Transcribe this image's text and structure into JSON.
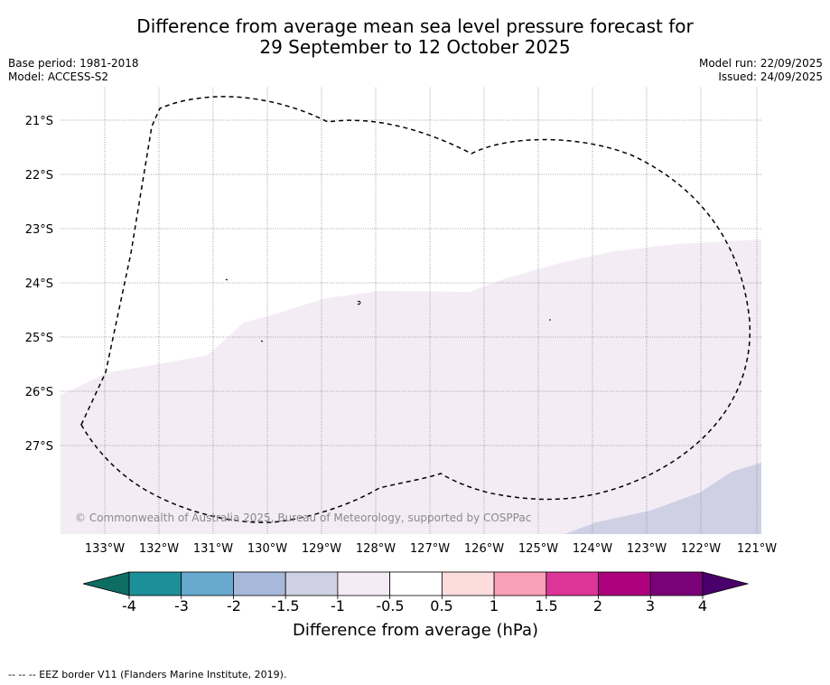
{
  "title": {
    "line1": "Difference from average mean sea level pressure forecast for",
    "line2": "29 September to 12 October 2025"
  },
  "info_left": {
    "base_period": "Base period: 1981-2018",
    "model": "Model: ACCESS-S2"
  },
  "info_right": {
    "model_run": "Model run: 22/09/2025",
    "issued": "Issued: 24/09/2025"
  },
  "map": {
    "lon_labels": [
      "133°W",
      "132°W",
      "131°W",
      "130°W",
      "129°W",
      "128°W",
      "127°W",
      "126°W",
      "125°W",
      "124°W",
      "123°W",
      "122°W",
      "121°W"
    ],
    "lat_labels": [
      "21°S",
      "22°S",
      "23°S",
      "24°S",
      "25°S",
      "26°S",
      "27°S"
    ],
    "copyright": "© Commonwealth of Australia 2025, Bureau of Meteorology, supported by COSPPac",
    "region_colors": {
      "light_negative": "#f3ecf5",
      "moderate_negative": "#cfd0e4"
    }
  },
  "colorbar": {
    "label": "Difference from average (hPa)",
    "ticks": [
      "-4",
      "-3",
      "-2",
      "-1.5",
      "-1",
      "-0.5",
      "0.5",
      "1",
      "1.5",
      "2",
      "3",
      "4"
    ],
    "colors": [
      "#0d6d63",
      "#1d8f98",
      "#67a9cf",
      "#a6b9da",
      "#cfd0e4",
      "#f3ecf5",
      "#ffffff",
      "#fddcdc",
      "#f99fb8",
      "#dd3497",
      "#ae017e",
      "#7a0177",
      "#49006a"
    ]
  },
  "footnote": "--  --  -- EEZ border V11 (Flanders Marine Institute, 2019)."
}
